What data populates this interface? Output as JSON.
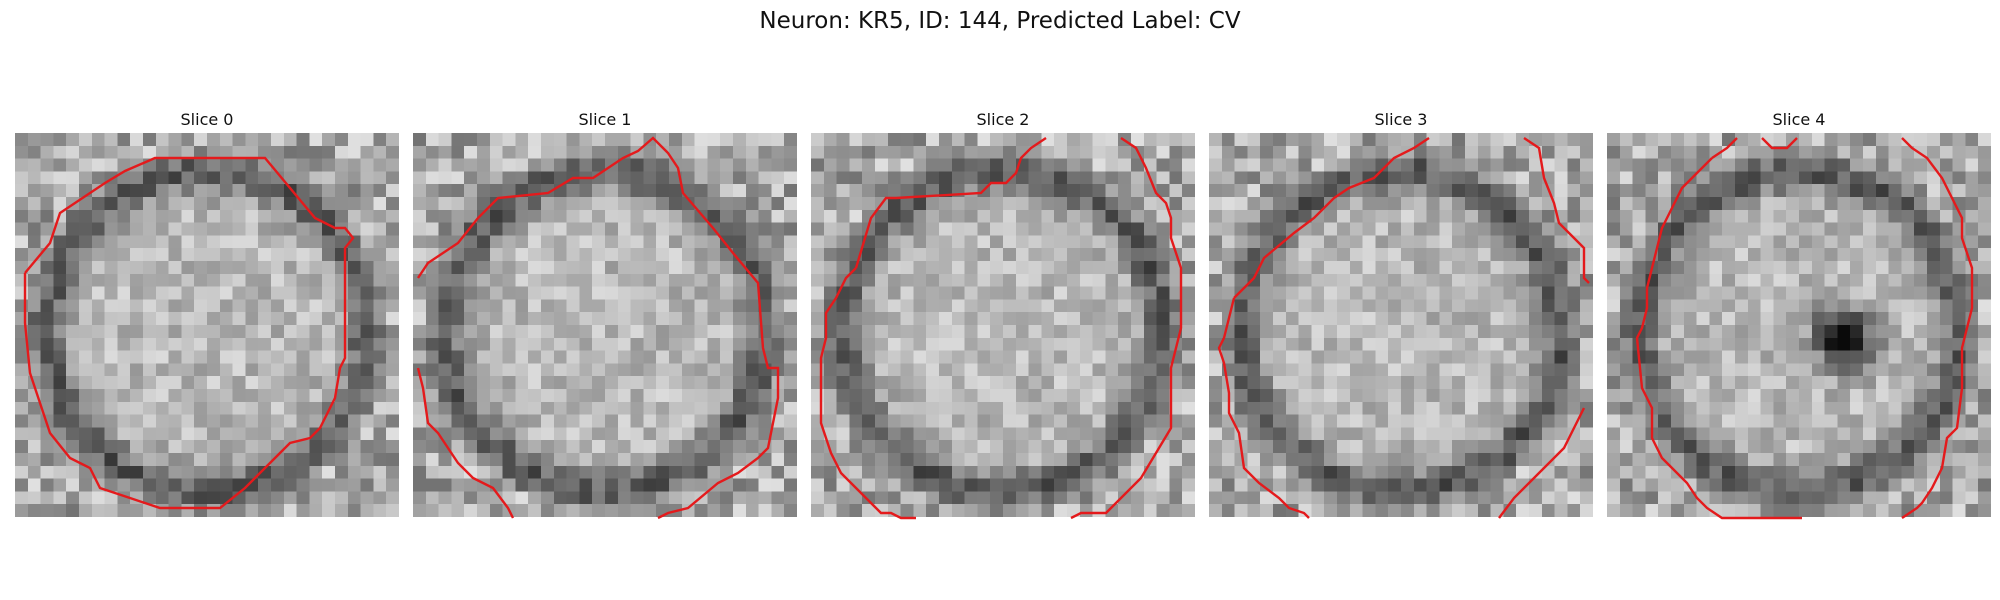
{
  "figure": {
    "title": "Neuron: KR5, ID: 144, Predicted Label: CV"
  },
  "panels": [
    {
      "title": "Slice 0",
      "dark_blob": false
    },
    {
      "title": "Slice 1",
      "dark_blob": false
    },
    {
      "title": "Slice 2",
      "dark_blob": false
    },
    {
      "title": "Slice 3",
      "dark_blob": false
    },
    {
      "title": "Slice 4",
      "dark_blob": true
    }
  ],
  "colors": {
    "contour": "#e41a1c",
    "colormap": "grayscale"
  }
}
